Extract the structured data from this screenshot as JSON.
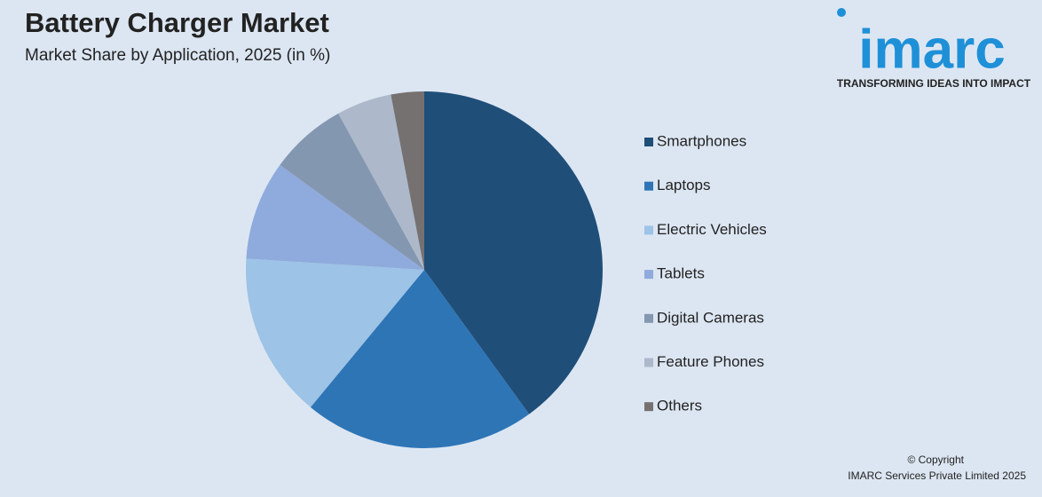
{
  "chart_data": {
    "type": "pie",
    "title": "Battery Charger Market",
    "subtitle": "Market Share by Application, 2025 (in %)",
    "categories": [
      "Smartphones",
      "Laptops",
      "Electric Vehicles",
      "Tablets",
      "Digital Cameras",
      "Feature Phones",
      "Others"
    ],
    "values": [
      40,
      21,
      15,
      9,
      7,
      5,
      3
    ],
    "colors": [
      "#1f4e79",
      "#2e75b6",
      "#9dc3e6",
      "#8faadc",
      "#8497b0",
      "#adb9ca",
      "#767171"
    ],
    "legend": "right"
  },
  "logo": {
    "name": "imarc",
    "tagline": "TRANSFORMING IDEAS INTO IMPACT"
  },
  "footer": {
    "copyright": "© Copyright",
    "company": "IMARC Services Private Limited 2025"
  }
}
